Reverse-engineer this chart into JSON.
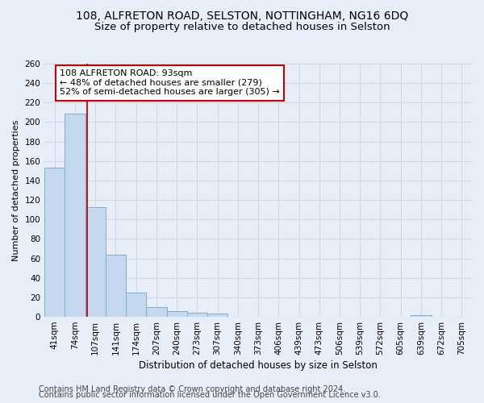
{
  "title1": "108, ALFRETON ROAD, SELSTON, NOTTINGHAM, NG16 6DQ",
  "title2": "Size of property relative to detached houses in Selston",
  "xlabel": "Distribution of detached houses by size in Selston",
  "ylabel": "Number of detached properties",
  "bar_labels": [
    "41sqm",
    "74sqm",
    "107sqm",
    "141sqm",
    "174sqm",
    "207sqm",
    "240sqm",
    "273sqm",
    "307sqm",
    "340sqm",
    "373sqm",
    "406sqm",
    "439sqm",
    "473sqm",
    "506sqm",
    "539sqm",
    "572sqm",
    "605sqm",
    "639sqm",
    "672sqm",
    "705sqm"
  ],
  "bar_values": [
    153,
    209,
    113,
    64,
    25,
    10,
    6,
    4,
    3,
    0,
    0,
    0,
    0,
    0,
    0,
    0,
    0,
    0,
    2,
    0,
    0
  ],
  "bar_color": "#c5d8f0",
  "bar_edge_color": "#7bafd4",
  "grid_color": "#d0d8e8",
  "background_color": "#e8eef8",
  "red_line_x": 1.576,
  "annotation_text": "108 ALFRETON ROAD: 93sqm\n← 48% of detached houses are smaller (279)\n52% of semi-detached houses are larger (305) →",
  "annotation_box_color": "#ffffff",
  "annotation_box_edge": "#cc0000",
  "footer_text1": "Contains HM Land Registry data © Crown copyright and database right 2024.",
  "footer_text2": "Contains public sector information licensed under the Open Government Licence v3.0.",
  "ylim": [
    0,
    260
  ],
  "title_fontsize": 10,
  "subtitle_fontsize": 9.5,
  "xlabel_fontsize": 8.5,
  "ylabel_fontsize": 8,
  "tick_fontsize": 7.5,
  "footer_fontsize": 7,
  "annotation_fontsize": 8
}
